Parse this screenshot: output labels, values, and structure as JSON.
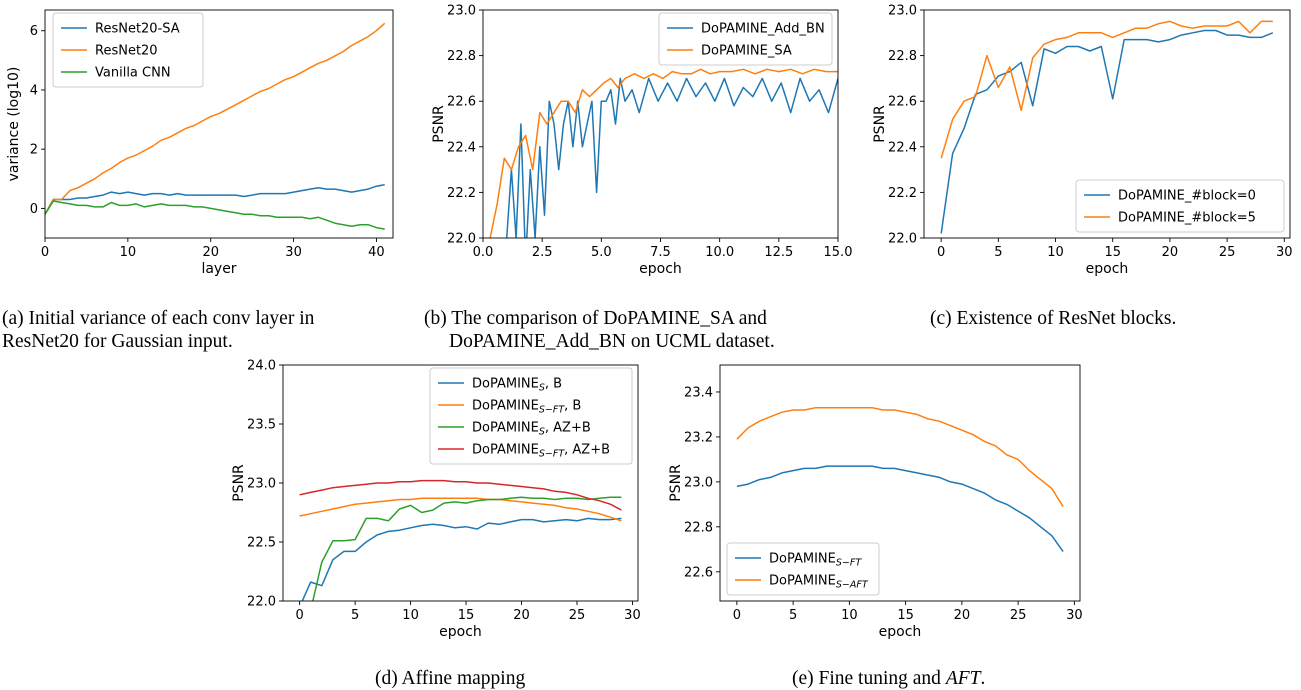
{
  "colors": {
    "blue": "#1f77b4",
    "orange": "#ff7f0e",
    "green": "#2ca02c",
    "red": "#d62728"
  },
  "chart_data": [
    {
      "id": "a",
      "type": "line",
      "caption": "(a) Initial variance of each conv layer in",
      "caption2": "ResNet20 for Gaussian input.",
      "xlabel": "layer",
      "ylabel": "variance (log10)",
      "xlim": [
        0,
        42
      ],
      "ylim": [
        -1,
        6.7
      ],
      "xticks": [
        0,
        10,
        20,
        30,
        40
      ],
      "yticks": [
        0,
        2,
        4,
        6
      ],
      "legend_position": "top-left",
      "x_start": 0,
      "series": [
        {
          "name": "ResNet20-SA",
          "color": "blue",
          "values": [
            -0.2,
            0.3,
            0.3,
            0.3,
            0.35,
            0.35,
            0.4,
            0.45,
            0.55,
            0.5,
            0.55,
            0.5,
            0.45,
            0.5,
            0.5,
            0.45,
            0.5,
            0.45,
            0.45,
            0.45,
            0.45,
            0.45,
            0.45,
            0.45,
            0.4,
            0.45,
            0.5,
            0.5,
            0.5,
            0.5,
            0.55,
            0.6,
            0.65,
            0.7,
            0.65,
            0.65,
            0.6,
            0.55,
            0.6,
            0.65,
            0.75,
            0.8
          ]
        },
        {
          "name": "ResNet20",
          "color": "orange",
          "values": [
            -0.2,
            0.3,
            0.3,
            0.6,
            0.7,
            0.85,
            1.0,
            1.2,
            1.35,
            1.55,
            1.7,
            1.8,
            1.95,
            2.1,
            2.3,
            2.4,
            2.55,
            2.7,
            2.8,
            2.95,
            3.1,
            3.2,
            3.35,
            3.5,
            3.65,
            3.8,
            3.95,
            4.05,
            4.2,
            4.35,
            4.45,
            4.6,
            4.75,
            4.9,
            5.0,
            5.15,
            5.3,
            5.5,
            5.65,
            5.8,
            6.0,
            6.25
          ]
        },
        {
          "name": "Vanilla CNN",
          "color": "green",
          "values": [
            -0.2,
            0.25,
            0.2,
            0.15,
            0.1,
            0.1,
            0.05,
            0.05,
            0.2,
            0.1,
            0.1,
            0.15,
            0.05,
            0.1,
            0.15,
            0.1,
            0.1,
            0.1,
            0.05,
            0.05,
            0.0,
            -0.05,
            -0.1,
            -0.15,
            -0.2,
            -0.2,
            -0.25,
            -0.25,
            -0.3,
            -0.3,
            -0.3,
            -0.3,
            -0.35,
            -0.3,
            -0.4,
            -0.5,
            -0.55,
            -0.6,
            -0.55,
            -0.55,
            -0.65,
            -0.7
          ]
        }
      ]
    },
    {
      "id": "b",
      "type": "line",
      "caption": "(b) The comparison of DoPAMINE_SA and",
      "caption2": "DoPAMINE_Add_BN on UCML dataset.",
      "xlabel": "epoch",
      "ylabel": "PSNR",
      "xlim": [
        0,
        15
      ],
      "ylim": [
        22.0,
        23.0
      ],
      "xticks": [
        0.0,
        2.5,
        5.0,
        7.5,
        10.0,
        12.5,
        15.0
      ],
      "yticks": [
        22.0,
        22.2,
        22.4,
        22.6,
        22.8,
        23.0
      ],
      "legend_position": "top-right",
      "series": [
        {
          "name": "DoPAMINE_Add_BN",
          "color": "blue",
          "x": [
            0.2,
            0.6,
            1.0,
            1.2,
            1.4,
            1.6,
            1.8,
            2.0,
            2.2,
            2.4,
            2.6,
            2.8,
            3.0,
            3.2,
            3.4,
            3.6,
            3.8,
            4.0,
            4.2,
            4.4,
            4.6,
            4.8,
            5.0,
            5.2,
            5.4,
            5.6,
            5.8,
            6.0,
            6.3,
            6.6,
            7.0,
            7.4,
            7.8,
            8.2,
            8.6,
            9.0,
            9.4,
            9.8,
            10.2,
            10.6,
            11.0,
            11.4,
            11.8,
            12.2,
            12.6,
            13.0,
            13.4,
            13.8,
            14.2,
            14.6,
            15.0
          ],
          "values": [
            21.8,
            21.9,
            22.0,
            22.3,
            22.0,
            22.5,
            21.9,
            22.3,
            22.0,
            22.4,
            22.1,
            22.6,
            22.5,
            22.3,
            22.5,
            22.6,
            22.4,
            22.6,
            22.4,
            22.5,
            22.6,
            22.2,
            22.6,
            22.6,
            22.65,
            22.5,
            22.7,
            22.6,
            22.65,
            22.55,
            22.7,
            22.6,
            22.68,
            22.6,
            22.7,
            22.62,
            22.68,
            22.6,
            22.7,
            22.58,
            22.66,
            22.62,
            22.7,
            22.6,
            22.68,
            22.55,
            22.7,
            22.6,
            22.65,
            22.55,
            22.7
          ]
        },
        {
          "name": "DoPAMINE_SA",
          "color": "orange",
          "x": [
            0.3,
            0.6,
            0.9,
            1.2,
            1.5,
            1.8,
            2.1,
            2.4,
            2.7,
            3.0,
            3.3,
            3.6,
            3.9,
            4.2,
            4.5,
            4.8,
            5.1,
            5.4,
            5.7,
            6.0,
            6.4,
            6.8,
            7.2,
            7.6,
            8.0,
            8.4,
            8.8,
            9.2,
            9.6,
            10.0,
            10.5,
            11.0,
            11.5,
            12.0,
            12.5,
            13.0,
            13.5,
            14.0,
            14.5,
            15.0
          ],
          "values": [
            22.0,
            22.15,
            22.35,
            22.3,
            22.4,
            22.45,
            22.3,
            22.55,
            22.5,
            22.55,
            22.6,
            22.6,
            22.55,
            22.65,
            22.62,
            22.65,
            22.68,
            22.7,
            22.66,
            22.7,
            22.72,
            22.7,
            22.72,
            22.7,
            22.73,
            22.72,
            22.72,
            22.74,
            22.72,
            22.73,
            22.73,
            22.74,
            22.72,
            22.74,
            22.73,
            22.74,
            22.72,
            22.74,
            22.73,
            22.73
          ]
        }
      ]
    },
    {
      "id": "c",
      "type": "line",
      "caption": "(c) Existence of ResNet blocks.",
      "xlabel": "epoch",
      "ylabel": "PSNR",
      "xlim": [
        -1.5,
        30.5
      ],
      "ylim": [
        22.0,
        23.0
      ],
      "xticks": [
        0,
        5,
        10,
        15,
        20,
        25,
        30
      ],
      "yticks": [
        22.0,
        22.2,
        22.4,
        22.6,
        22.8,
        23.0
      ],
      "legend_position": "lower-right",
      "x_start": 0,
      "series": [
        {
          "name": "DoPAMINE_#block=0",
          "color": "blue",
          "values": [
            22.02,
            22.37,
            22.48,
            22.63,
            22.65,
            22.71,
            22.73,
            22.77,
            22.58,
            22.83,
            22.81,
            22.84,
            22.84,
            22.82,
            22.84,
            22.61,
            22.87,
            22.87,
            22.87,
            22.86,
            22.87,
            22.89,
            22.9,
            22.91,
            22.91,
            22.89,
            22.89,
            22.88,
            22.88,
            22.9
          ]
        },
        {
          "name": "DoPAMINE_#block=5",
          "color": "orange",
          "values": [
            22.35,
            22.52,
            22.6,
            22.62,
            22.8,
            22.66,
            22.75,
            22.56,
            22.79,
            22.85,
            22.87,
            22.88,
            22.9,
            22.9,
            22.9,
            22.88,
            22.9,
            22.92,
            22.92,
            22.94,
            22.95,
            22.93,
            22.92,
            22.93,
            22.93,
            22.93,
            22.95,
            22.9,
            22.95,
            22.95
          ]
        }
      ]
    },
    {
      "id": "d",
      "type": "line",
      "caption": "(d) Affine mapping",
      "xlabel": "epoch",
      "ylabel": "PSNR",
      "xlim": [
        -1.5,
        30.5
      ],
      "ylim": [
        22.0,
        24.0
      ],
      "xticks": [
        0,
        5,
        10,
        15,
        20,
        25,
        30
      ],
      "yticks": [
        22.0,
        22.5,
        23.0,
        23.5,
        24.0
      ],
      "legend_position": "top-right",
      "x_start": 0,
      "series": [
        {
          "name": "DoPAMINE",
          "sub": "S",
          "suffix": ", B",
          "color": "blue",
          "values": [
            21.95,
            22.16,
            22.13,
            22.35,
            22.42,
            22.42,
            22.5,
            22.56,
            22.59,
            22.6,
            22.62,
            22.64,
            22.65,
            22.64,
            22.62,
            22.63,
            22.61,
            22.66,
            22.65,
            22.67,
            22.69,
            22.69,
            22.67,
            22.68,
            22.69,
            22.68,
            22.7,
            22.69,
            22.69,
            22.7
          ]
        },
        {
          "name": "DoPAMINE",
          "sub": "S−FT",
          "suffix": ", B",
          "color": "orange",
          "values": [
            22.72,
            22.74,
            22.76,
            22.78,
            22.8,
            22.82,
            22.83,
            22.84,
            22.85,
            22.86,
            22.86,
            22.87,
            22.87,
            22.87,
            22.87,
            22.87,
            22.87,
            22.86,
            22.86,
            22.85,
            22.84,
            22.83,
            22.82,
            22.81,
            22.79,
            22.78,
            22.76,
            22.74,
            22.71,
            22.68
          ]
        },
        {
          "name": "DoPAMINE",
          "sub": "S",
          "suffix": ", AZ+B",
          "color": "green",
          "values": [
            21.8,
            21.92,
            22.33,
            22.51,
            22.51,
            22.52,
            22.7,
            22.7,
            22.68,
            22.78,
            22.81,
            22.75,
            22.77,
            22.83,
            22.84,
            22.83,
            22.85,
            22.86,
            22.86,
            22.87,
            22.88,
            22.87,
            22.87,
            22.86,
            22.87,
            22.87,
            22.86,
            22.87,
            22.88,
            22.88
          ]
        },
        {
          "name": "DoPAMINE",
          "sub": "S−FT",
          "suffix": ", AZ+B",
          "color": "red",
          "values": [
            22.9,
            22.92,
            22.94,
            22.96,
            22.97,
            22.98,
            22.99,
            23.0,
            23.0,
            23.01,
            23.01,
            23.02,
            23.02,
            23.02,
            23.01,
            23.01,
            23.0,
            23.0,
            22.99,
            22.98,
            22.97,
            22.96,
            22.95,
            22.93,
            22.92,
            22.9,
            22.87,
            22.85,
            22.82,
            22.77
          ]
        }
      ]
    },
    {
      "id": "e",
      "type": "line",
      "caption": "(e) Fine tuning and",
      "caption_italic": "AFT",
      "caption_end": ".",
      "xlabel": "epoch",
      "ylabel": "PSNR",
      "xlim": [
        -1.5,
        30.5
      ],
      "ylim": [
        22.47,
        23.52
      ],
      "xticks": [
        0,
        5,
        10,
        15,
        20,
        25,
        30
      ],
      "yticks": [
        22.6,
        22.8,
        23.0,
        23.2,
        23.4
      ],
      "legend_position": "lower-left",
      "x_start": 0,
      "series": [
        {
          "name": "DoPAMINE",
          "sub": "S−FT",
          "color": "blue",
          "values": [
            22.98,
            22.99,
            23.01,
            23.02,
            23.04,
            23.05,
            23.06,
            23.06,
            23.07,
            23.07,
            23.07,
            23.07,
            23.07,
            23.06,
            23.06,
            23.05,
            23.04,
            23.03,
            23.02,
            23.0,
            22.99,
            22.97,
            22.95,
            22.92,
            22.9,
            22.87,
            22.84,
            22.8,
            22.76,
            22.69
          ]
        },
        {
          "name": "DoPAMINE",
          "sub": "S−AFT",
          "color": "orange",
          "values": [
            23.19,
            23.24,
            23.27,
            23.29,
            23.31,
            23.32,
            23.32,
            23.33,
            23.33,
            23.33,
            23.33,
            23.33,
            23.33,
            23.32,
            23.32,
            23.31,
            23.3,
            23.28,
            23.27,
            23.25,
            23.23,
            23.21,
            23.18,
            23.16,
            23.12,
            23.1,
            23.05,
            23.01,
            22.97,
            22.89
          ]
        }
      ]
    }
  ]
}
